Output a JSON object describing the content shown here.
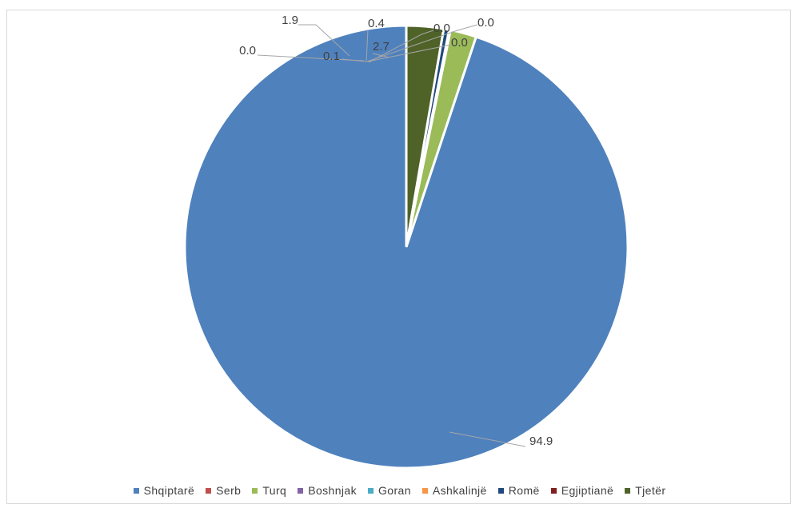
{
  "chart_data": {
    "type": "pie",
    "categories": [
      "Shqiptarë",
      "Serb",
      "Turq",
      "Boshnjak",
      "Goran",
      "Ashkalinjë",
      "Romë",
      "Egjiptianë",
      "Tjetër"
    ],
    "values": [
      94.9,
      0.0,
      1.9,
      0.1,
      0.0,
      0.0,
      0.4,
      0.0,
      2.7
    ],
    "data_labels": [
      "94.9",
      "0.0",
      "1.9",
      "0.1",
      "0.0",
      "0.0",
      "0.4",
      "0.0",
      "2.7"
    ],
    "colors": [
      "#4f81bd",
      "#c0504d",
      "#9bbb59",
      "#8064a2",
      "#4bacc6",
      "#f79646",
      "#1f497d",
      "#7f1f1f",
      "#4f6228"
    ],
    "legend_position": "bottom",
    "title": "",
    "start_angle_deg": 0,
    "direction": "counterclockwise"
  }
}
